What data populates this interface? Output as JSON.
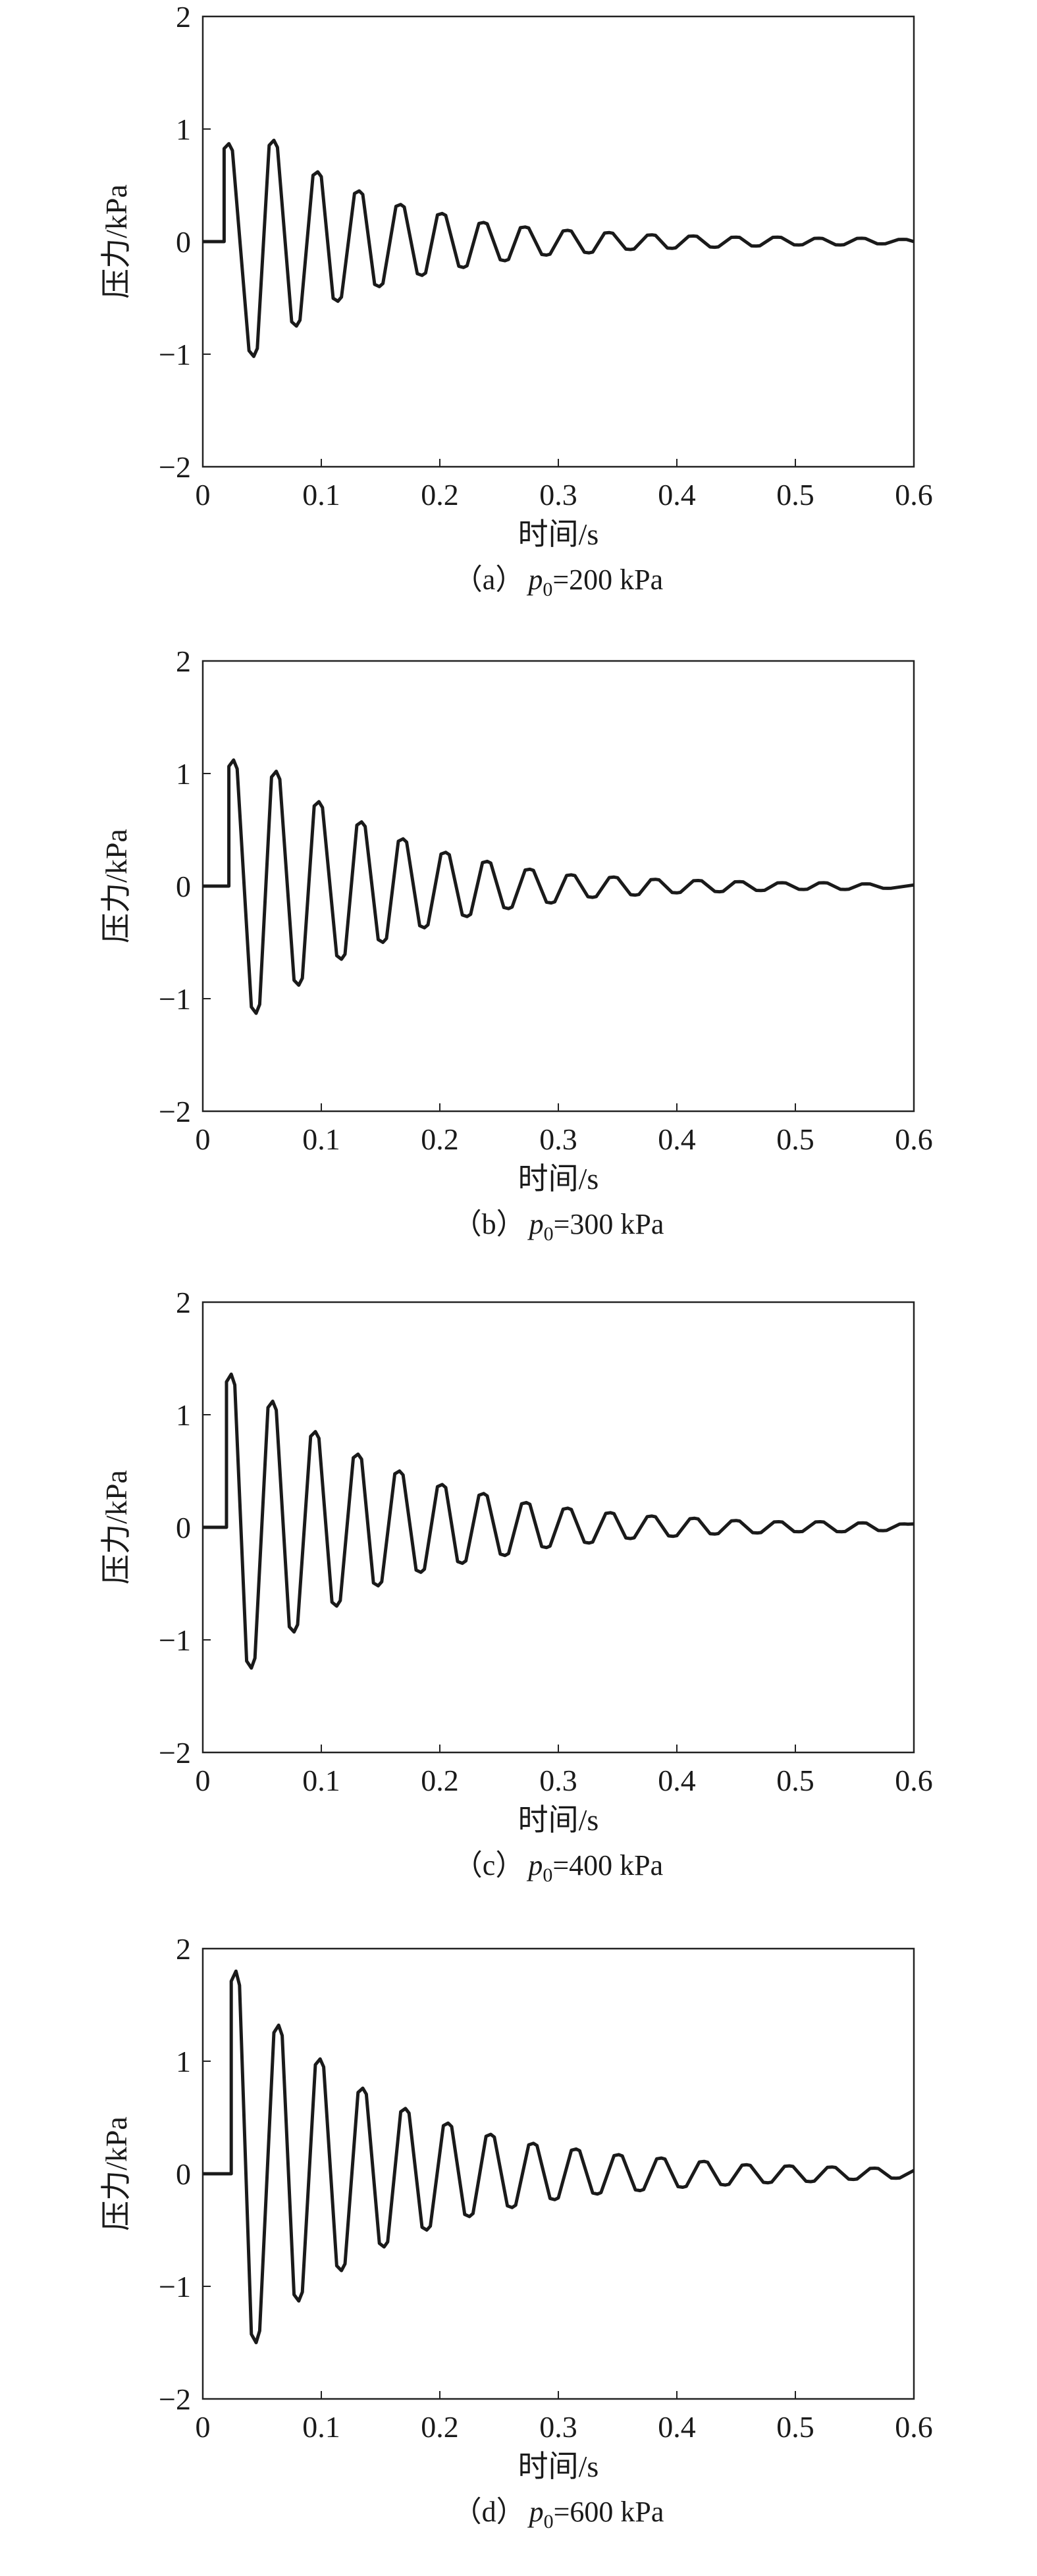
{
  "chart_data": [
    {
      "type": "line",
      "caption": {
        "prefix": "（a）",
        "var": "p",
        "sub": "0",
        "rest": "=200 kPa"
      },
      "xlabel": "时间/s",
      "ylabel": "压力/kPa",
      "xlim": [
        0,
        0.6
      ],
      "ylim": [
        -2,
        2
      ],
      "xticks": [
        "0",
        "0.1",
        "0.2",
        "0.3",
        "0.4",
        "0.5",
        "0.6"
      ],
      "yticks": [
        "−2",
        "−1",
        "0",
        "1",
        "2"
      ],
      "grid": false,
      "onset_t": 0.018,
      "end_v": 0.0,
      "peak_t": [
        0.022,
        0.06,
        0.097,
        0.132,
        0.167,
        0.202,
        0.237,
        0.272,
        0.308,
        0.343,
        0.379,
        0.414,
        0.45,
        0.485,
        0.52,
        0.556,
        0.591
      ],
      "peak_v": [
        0.87,
        0.9,
        0.62,
        0.45,
        0.33,
        0.25,
        0.17,
        0.13,
        0.1,
        0.08,
        0.06,
        0.05,
        0.04,
        0.04,
        0.03,
        0.03,
        0.02
      ],
      "trough_t": [
        0.043,
        0.079,
        0.114,
        0.149,
        0.185,
        0.22,
        0.255,
        0.29,
        0.326,
        0.361,
        0.396,
        0.432,
        0.467,
        0.503,
        0.538,
        0.573
      ],
      "trough_v": [
        -1.02,
        -0.75,
        -0.53,
        -0.4,
        -0.3,
        -0.23,
        -0.17,
        -0.12,
        -0.1,
        -0.07,
        -0.06,
        -0.05,
        -0.04,
        -0.03,
        -0.03,
        -0.02
      ]
    },
    {
      "type": "line",
      "caption": {
        "prefix": "（b）",
        "var": "p",
        "sub": "0",
        "rest": "=300 kPa"
      },
      "xlabel": "时间/s",
      "ylabel": "压力/kPa",
      "xlim": [
        0,
        0.6
      ],
      "ylim": [
        -2,
        2
      ],
      "xticks": [
        "0",
        "0.1",
        "0.2",
        "0.3",
        "0.4",
        "0.5",
        "0.6"
      ],
      "yticks": [
        "−2",
        "−1",
        "0",
        "1",
        "2"
      ],
      "grid": false,
      "onset_t": 0.022,
      "end_v": 0.01,
      "peak_t": [
        0.026,
        0.062,
        0.098,
        0.134,
        0.169,
        0.205,
        0.24,
        0.276,
        0.311,
        0.347,
        0.382,
        0.418,
        0.453,
        0.489,
        0.524,
        0.56
      ],
      "peak_v": [
        1.12,
        1.02,
        0.75,
        0.57,
        0.42,
        0.3,
        0.22,
        0.15,
        0.1,
        0.08,
        0.06,
        0.05,
        0.04,
        0.03,
        0.03,
        0.02
      ],
      "trough_t": [
        0.045,
        0.081,
        0.117,
        0.152,
        0.187,
        0.223,
        0.258,
        0.294,
        0.329,
        0.365,
        0.4,
        0.436,
        0.471,
        0.507,
        0.542,
        0.578
      ],
      "trough_v": [
        -1.13,
        -0.88,
        -0.65,
        -0.5,
        -0.37,
        -0.27,
        -0.2,
        -0.15,
        -0.1,
        -0.08,
        -0.06,
        -0.05,
        -0.04,
        -0.03,
        -0.03,
        -0.02
      ]
    },
    {
      "type": "line",
      "caption": {
        "prefix": "（c）",
        "var": "p",
        "sub": "0",
        "rest": "=400 kPa"
      },
      "xlabel": "时间/s",
      "ylabel": "压力/kPa",
      "xlim": [
        0,
        0.6
      ],
      "ylim": [
        -2,
        2
      ],
      "xticks": [
        "0",
        "0.1",
        "0.2",
        "0.3",
        "0.4",
        "0.5",
        "0.6"
      ],
      "yticks": [
        "−2",
        "−1",
        "0",
        "1",
        "2"
      ],
      "grid": false,
      "onset_t": 0.02,
      "end_v": 0.03,
      "peak_t": [
        0.024,
        0.059,
        0.095,
        0.131,
        0.166,
        0.202,
        0.237,
        0.273,
        0.308,
        0.344,
        0.379,
        0.415,
        0.45,
        0.486,
        0.521,
        0.557,
        0.592
      ],
      "peak_v": [
        1.36,
        1.12,
        0.85,
        0.65,
        0.5,
        0.38,
        0.3,
        0.22,
        0.17,
        0.13,
        0.1,
        0.08,
        0.06,
        0.05,
        0.05,
        0.04,
        0.03
      ],
      "trough_t": [
        0.041,
        0.077,
        0.113,
        0.148,
        0.184,
        0.219,
        0.255,
        0.29,
        0.326,
        0.361,
        0.397,
        0.432,
        0.468,
        0.503,
        0.539,
        0.574
      ],
      "trough_v": [
        -1.25,
        -0.93,
        -0.7,
        -0.52,
        -0.4,
        -0.32,
        -0.25,
        -0.18,
        -0.14,
        -0.1,
        -0.08,
        -0.06,
        -0.05,
        -0.04,
        -0.04,
        -0.03
      ]
    },
    {
      "type": "line",
      "caption": {
        "prefix": "（d）",
        "var": "p",
        "sub": "0",
        "rest": "=600 kPa"
      },
      "xlabel": "时间/s",
      "ylabel": "压力/kPa",
      "xlim": [
        0,
        0.6
      ],
      "ylim": [
        -2,
        2
      ],
      "xticks": [
        "0",
        "0.1",
        "0.2",
        "0.3",
        "0.4",
        "0.5",
        "0.6"
      ],
      "yticks": [
        "−2",
        "−1",
        "0",
        "1",
        "2"
      ],
      "grid": false,
      "onset_t": 0.024,
      "end_v": 0.03,
      "peak_t": [
        0.028,
        0.064,
        0.099,
        0.135,
        0.171,
        0.207,
        0.243,
        0.279,
        0.315,
        0.351,
        0.387,
        0.423,
        0.459,
        0.495,
        0.531,
        0.567
      ],
      "peak_v": [
        1.8,
        1.32,
        1.02,
        0.76,
        0.58,
        0.45,
        0.35,
        0.27,
        0.22,
        0.17,
        0.14,
        0.11,
        0.08,
        0.07,
        0.06,
        0.05
      ],
      "trough_t": [
        0.045,
        0.081,
        0.117,
        0.153,
        0.189,
        0.225,
        0.261,
        0.297,
        0.333,
        0.369,
        0.405,
        0.441,
        0.477,
        0.513,
        0.549,
        0.585
      ],
      "trough_v": [
        -1.5,
        -1.13,
        -0.86,
        -0.65,
        -0.5,
        -0.38,
        -0.3,
        -0.23,
        -0.18,
        -0.15,
        -0.12,
        -0.1,
        -0.08,
        -0.07,
        -0.05,
        -0.04
      ]
    }
  ]
}
